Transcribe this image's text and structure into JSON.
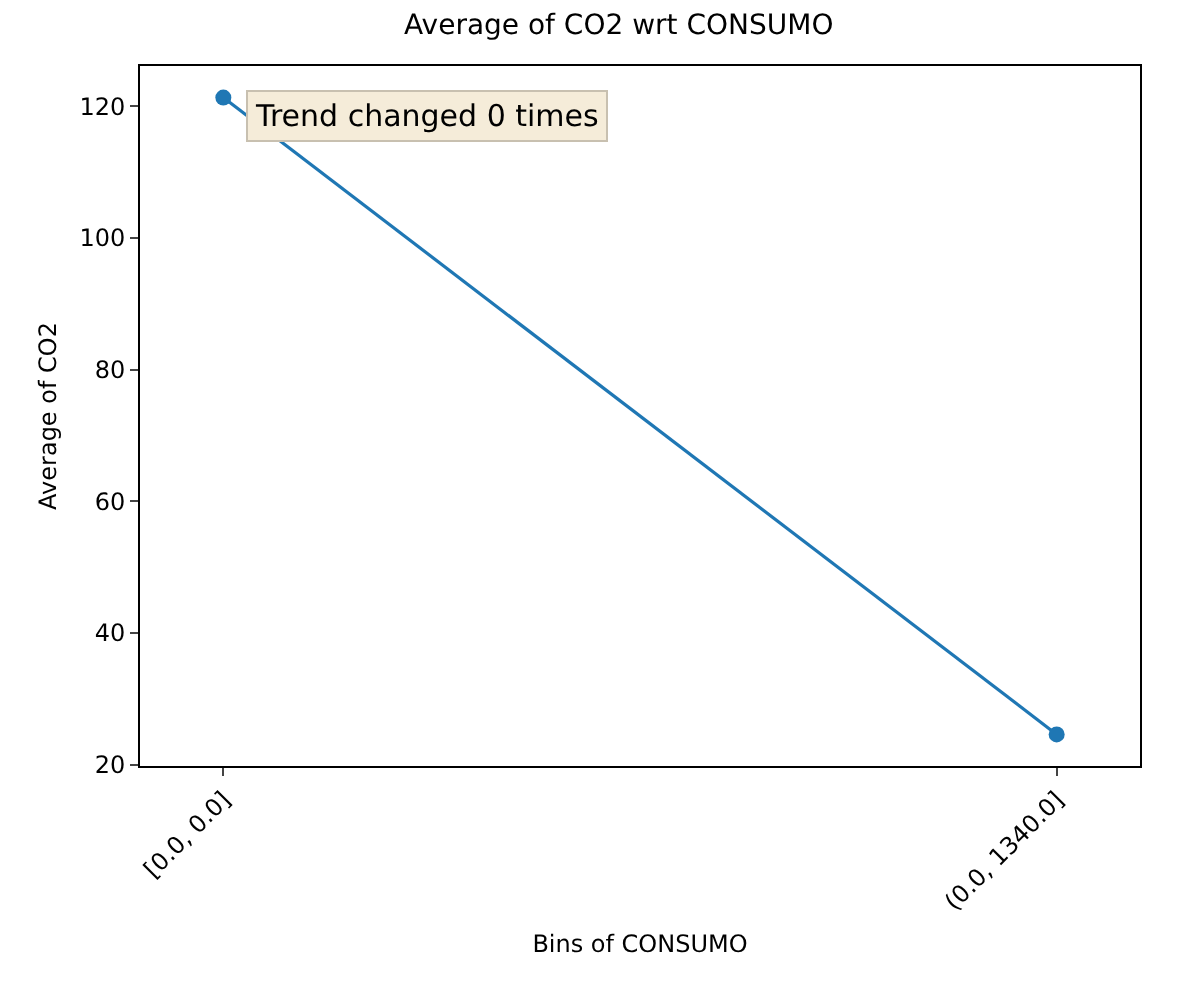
{
  "chart_data": {
    "type": "line",
    "title": "Average of CO2 wrt CONSUMO",
    "xlabel": "Bins of CONSUMO",
    "ylabel": "Average of CO2",
    "categories": [
      "[0.0, 0.0]",
      "(0.0, 1340.0]"
    ],
    "series": [
      {
        "color": "#1f77b4",
        "values": [
          121.3,
          24.6
        ]
      }
    ],
    "ylim": [
      19.8,
      126.1
    ],
    "yticks": [
      20,
      40,
      60,
      80,
      100,
      120
    ],
    "marker": "circle",
    "grid": false,
    "annotations": [
      "Trend changed 0 times"
    ]
  }
}
